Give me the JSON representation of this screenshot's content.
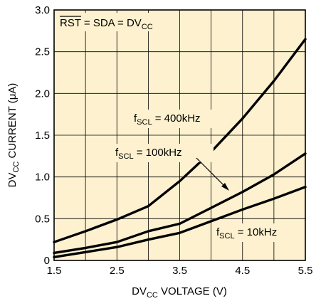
{
  "chart_data": {
    "type": "line",
    "xlabel": "DVCC VOLTAGE (V)",
    "ylabel": "DVCC CURRENT (μA)",
    "xlim": [
      1.5,
      5.5
    ],
    "ylim": [
      0,
      3.0
    ],
    "x_ticks": [
      "1.5",
      "2.5",
      "3.5",
      "4.5",
      "5.5"
    ],
    "y_ticks": [
      "0",
      "0.5",
      "1.0",
      "1.5",
      "2.0",
      "2.5",
      "3.0"
    ],
    "grid": true,
    "condition_text": "RST = SDA = DVCC",
    "series": [
      {
        "name": "fSCL = 400kHz",
        "x": [
          1.5,
          2.0,
          2.5,
          3.0,
          3.5,
          4.0,
          4.5,
          5.0,
          5.5
        ],
        "y": [
          0.22,
          0.35,
          0.49,
          0.65,
          0.95,
          1.3,
          1.7,
          2.15,
          2.65
        ]
      },
      {
        "name": "fSCL = 100kHz",
        "x": [
          1.5,
          2.0,
          2.5,
          3.0,
          3.5,
          4.0,
          4.5,
          5.0,
          5.5
        ],
        "y": [
          0.09,
          0.15,
          0.22,
          0.35,
          0.44,
          0.63,
          0.82,
          1.03,
          1.28
        ]
      },
      {
        "name": "fSCL = 10kHz",
        "x": [
          1.5,
          2.0,
          2.5,
          3.0,
          3.5,
          4.0,
          4.5,
          5.0,
          5.5
        ],
        "y": [
          0.04,
          0.1,
          0.16,
          0.25,
          0.33,
          0.47,
          0.61,
          0.74,
          0.88
        ]
      }
    ],
    "annotations": [
      {
        "base": "f",
        "sub": "SCL",
        "rest": " = 400kHz"
      },
      {
        "base": "f",
        "sub": "SCL",
        "rest": " = 100kHz"
      },
      {
        "base": "f",
        "sub": "SCL",
        "rest": " = 10kHz"
      }
    ]
  },
  "text": {
    "xlabel_pre": "DV",
    "xlabel_sub": "CC",
    "xlabel_post": " VOLTAGE (V)",
    "ylabel_pre": "DV",
    "ylabel_sub": "CC",
    "ylabel_post": " CURRENT (μA)",
    "cond_rst": "RST",
    "cond_mid": " = SDA = DV",
    "cond_sub": "CC"
  }
}
